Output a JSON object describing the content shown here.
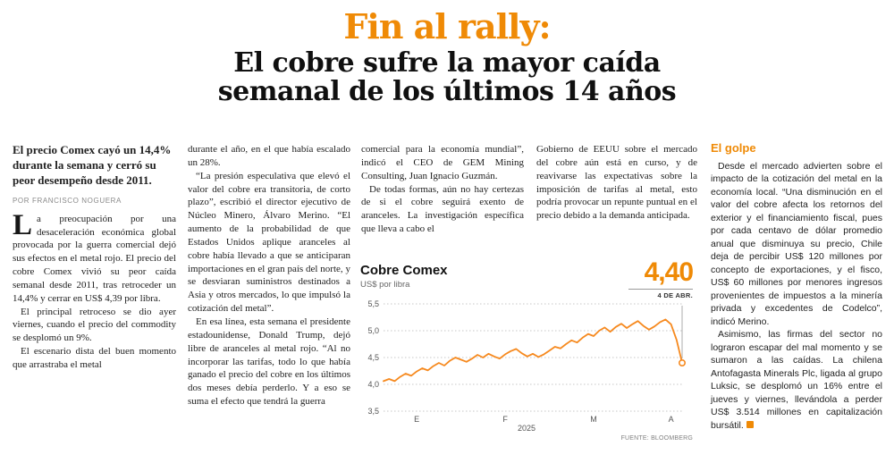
{
  "colors": {
    "accent": "#EF8A06",
    "chart_line": "#F6891E",
    "text": "#1C1C1C",
    "muted": "#666666"
  },
  "headline": {
    "kicker": "Fin al rally:",
    "title_line1": "El cobre sufre la mayor caída",
    "title_line2": "semanal de los últimos 14 años"
  },
  "lede": "El precio Comex cayó un 14,4% durante la semana y cerró su peor desempeño desde 2011.",
  "byline": "POR FRANCISCO NOGUERA",
  "columns": {
    "col1": {
      "dropcap": "L",
      "p1": "a preocupación por una desaceleración económica global provocada por la guerra comercial dejó sus efectos en el metal rojo. El precio del cobre Comex vivió su peor caída semanal desde 2011, tras retroceder un 14,4% y cerrar en US$ 4,39 por libra.",
      "p2": "El principal retroceso se dio ayer viernes, cuando el precio del commodity se desplomó un 9%.",
      "p3": "El escenario dista del buen momento que arrastraba el metal"
    },
    "col2": {
      "p1": "durante el año, en el que había escalado un 28%.",
      "p2": "“La presión especulativa que elevó el valor del cobre era transitoria, de corto plazo”, escribió el director ejecutivo de Núcleo Minero, Álvaro Merino. “El aumento de la probabilidad de que Estados Unidos aplique aranceles al cobre había llevado a que se anticiparan importaciones en el gran país del norte, y se desviaran suministros destinados a Asia y otros mercados, lo que impulsó la cotización del metal”.",
      "p3": "En esa línea, esta semana el presidente estadounidense, Donald Trump, dejó libre de aranceles al metal rojo. “Al no incorporar las tarifas, todo lo que había ganado el precio del cobre en los últimos dos meses debía perderlo. Y a eso se suma el efecto que tendrá la guerra"
    },
    "col3": {
      "p1": "comercial para la economía mundial”, indicó el CEO de GEM Mining Consulting, Juan Ignacio Guzmán.",
      "p2": "De todas formas, aún no hay certezas de si el cobre seguirá exento de aranceles. La investigación específica que lleva a cabo el"
    },
    "col4": {
      "p1": "Gobierno de EEUU sobre el mercado del cobre aún está en curso, y de reavivarse las expectativas sobre la imposición de tarifas al metal, esto podría provocar un repunte puntual en el precio debido a la demanda anticipada."
    }
  },
  "sidebar": {
    "heading": "El golpe",
    "p1": "Desde el mercado advierten sobre el impacto de la cotización del metal en la economía local. “Una disminución en el valor del cobre afecta los retornos del exterior y el financiamiento fiscal, pues por cada centavo de dólar promedio anual que disminuya su precio, Chile deja de percibir US$ 120 millones por concepto de exportaciones, y el fisco, US$ 60 millones por menores ingresos provenientes de impuestos a la minería privada y excedentes de Codelco”, indicó Merino.",
    "p2": "Asimismo, las firmas del sector no lograron escapar del mal momento y se sumaron a las caídas. La chilena Antofagasta Minerals Plc, ligada al grupo Luksic, se desplomó un 16% entre el jueves y viernes, llevándola a perder US$ 3.514 millones en capitalización bursátil."
  },
  "chart_data": {
    "type": "line",
    "title": "Cobre Comex",
    "ylabel": "US$ por libra",
    "ylim": [
      3.5,
      5.5
    ],
    "yticks": [
      {
        "label": "5,5",
        "value": 5.5
      },
      {
        "label": "5,0",
        "value": 5.0
      },
      {
        "label": "4,5",
        "value": 4.5
      },
      {
        "label": "4,0",
        "value": 4.0
      },
      {
        "label": "3,5",
        "value": 3.5
      }
    ],
    "month_ticks": [
      {
        "label": "E",
        "index": 6
      },
      {
        "label": "F",
        "index": 22
      },
      {
        "label": "M",
        "index": 38
      },
      {
        "label": "A",
        "index": 52
      }
    ],
    "values": [
      4.06,
      4.1,
      4.06,
      4.14,
      4.2,
      4.16,
      4.24,
      4.3,
      4.26,
      4.34,
      4.4,
      4.35,
      4.44,
      4.5,
      4.46,
      4.42,
      4.48,
      4.55,
      4.5,
      4.57,
      4.52,
      4.48,
      4.56,
      4.62,
      4.66,
      4.58,
      4.52,
      4.57,
      4.51,
      4.56,
      4.63,
      4.7,
      4.67,
      4.75,
      4.82,
      4.78,
      4.87,
      4.94,
      4.9,
      5.0,
      5.06,
      4.98,
      5.07,
      5.13,
      5.05,
      5.12,
      5.18,
      5.09,
      5.02,
      5.08,
      5.16,
      5.21,
      5.12,
      4.83,
      4.4
    ],
    "last_point_value": "4,40",
    "last_point_label": "4 DE ABR.",
    "year": "2025",
    "source": "FUENTE: BLOOMBERG",
    "line_color": "#F6891E",
    "grid": "horizontal-dotted",
    "legend_position": "none"
  }
}
